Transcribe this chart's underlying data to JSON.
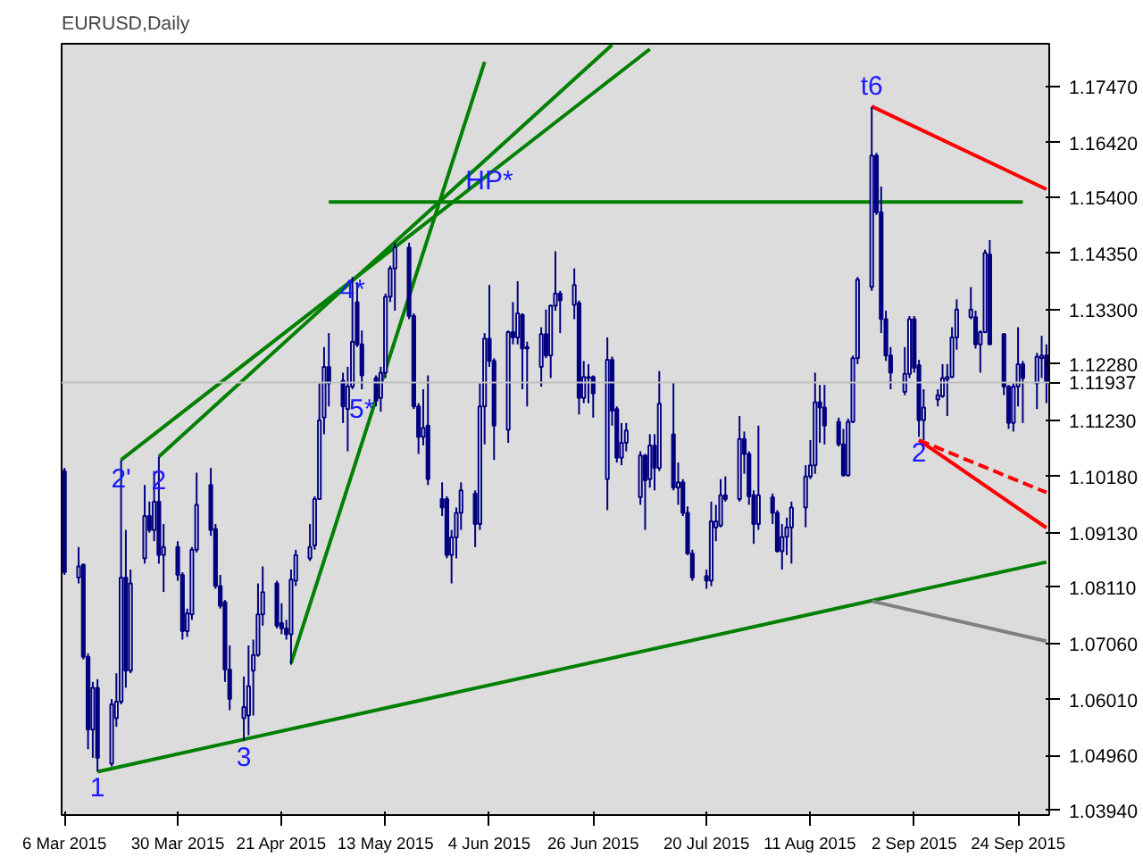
{
  "chart_data": {
    "type": "candlestick",
    "title": "EURUSD,Daily",
    "color": "#000080",
    "x": [
      "2015-03-06",
      "2015-03-09",
      "2015-03-10",
      "2015-03-11",
      "2015-03-12",
      "2015-03-13",
      "2015-03-16",
      "2015-03-17",
      "2015-03-18",
      "2015-03-19",
      "2015-03-20",
      "2015-03-23",
      "2015-03-24",
      "2015-03-25",
      "2015-03-26",
      "2015-03-27",
      "2015-03-30",
      "2015-03-31",
      "2015-04-01",
      "2015-04-02",
      "2015-04-03",
      "2015-04-06",
      "2015-04-07",
      "2015-04-08",
      "2015-04-09",
      "2015-04-10",
      "2015-04-13",
      "2015-04-14",
      "2015-04-15",
      "2015-04-16",
      "2015-04-17",
      "2015-04-20",
      "2015-04-21",
      "2015-04-22",
      "2015-04-23",
      "2015-04-24",
      "2015-04-27",
      "2015-04-28",
      "2015-04-29",
      "2015-04-30",
      "2015-05-01",
      "2015-05-04",
      "2015-05-05",
      "2015-05-06",
      "2015-05-07",
      "2015-05-08",
      "2015-05-11",
      "2015-05-12",
      "2015-05-13",
      "2015-05-14",
      "2015-05-15",
      "2015-05-18",
      "2015-05-19",
      "2015-05-20",
      "2015-05-21",
      "2015-05-22",
      "2015-05-25",
      "2015-05-26",
      "2015-05-27",
      "2015-05-28",
      "2015-05-29",
      "2015-06-01",
      "2015-06-02",
      "2015-06-03",
      "2015-06-04",
      "2015-06-05",
      "2015-06-08",
      "2015-06-09",
      "2015-06-10",
      "2015-06-11",
      "2015-06-12",
      "2015-06-15",
      "2015-06-16",
      "2015-06-17",
      "2015-06-18",
      "2015-06-19",
      "2015-06-22",
      "2015-06-23",
      "2015-06-24",
      "2015-06-25",
      "2015-06-26",
      "2015-06-29",
      "2015-06-30",
      "2015-07-01",
      "2015-07-02",
      "2015-07-03",
      "2015-07-06",
      "2015-07-07",
      "2015-07-08",
      "2015-07-09",
      "2015-07-10",
      "2015-07-13",
      "2015-07-14",
      "2015-07-15",
      "2015-07-16",
      "2015-07-17",
      "2015-07-20",
      "2015-07-21",
      "2015-07-22",
      "2015-07-23",
      "2015-07-24",
      "2015-07-27",
      "2015-07-28",
      "2015-07-29",
      "2015-07-30",
      "2015-07-31",
      "2015-08-03",
      "2015-08-04",
      "2015-08-05",
      "2015-08-06",
      "2015-08-07",
      "2015-08-10",
      "2015-08-11",
      "2015-08-12",
      "2015-08-13",
      "2015-08-14",
      "2015-08-17",
      "2015-08-18",
      "2015-08-19",
      "2015-08-20",
      "2015-08-21",
      "2015-08-24",
      "2015-08-25",
      "2015-08-26",
      "2015-08-27",
      "2015-08-28",
      "2015-08-31",
      "2015-09-01",
      "2015-09-02",
      "2015-09-03",
      "2015-09-04",
      "2015-09-07",
      "2015-09-08",
      "2015-09-09",
      "2015-09-10",
      "2015-09-11",
      "2015-09-14",
      "2015-09-15",
      "2015-09-16",
      "2015-09-17",
      "2015-09-18",
      "2015-09-21",
      "2015-09-22",
      "2015-09-23",
      "2015-09-24",
      "2015-09-25",
      "2015-09-28",
      "2015-09-29",
      "2015-09-30"
    ],
    "ohlc": [
      [
        1.1028,
        1.1034,
        1.0834,
        1.0839
      ],
      [
        1.0829,
        1.0886,
        1.0818,
        1.085
      ],
      [
        1.0853,
        1.0855,
        1.0676,
        1.0681
      ],
      [
        1.0681,
        1.0687,
        1.0508,
        1.0545
      ],
      [
        1.0545,
        1.0634,
        1.0492,
        1.0623
      ],
      [
        1.0623,
        1.0639,
        1.0466,
        1.0492
      ],
      [
        1.0481,
        1.0602,
        1.0476,
        1.0592
      ],
      [
        1.0566,
        1.065,
        1.055,
        1.0597
      ],
      [
        1.0597,
        1.1049,
        1.0592,
        1.0829
      ],
      [
        1.0829,
        1.0918,
        1.0623,
        1.0655
      ],
      [
        1.0655,
        1.0844,
        1.065,
        1.0818
      ],
      [
        1.0865,
        1.1002,
        1.0855,
        1.0944
      ],
      [
        1.0944,
        1.0971,
        1.0913,
        1.0918
      ],
      [
        1.0918,
        1.1028,
        1.0897,
        1.0971
      ],
      [
        1.0971,
        1.1055,
        1.0855,
        1.0871
      ],
      [
        1.0871,
        1.0929,
        1.0802,
        1.0886
      ],
      [
        1.0886,
        1.0897,
        1.0823,
        1.0834
      ],
      [
        1.0834,
        1.0839,
        1.0713,
        1.0729
      ],
      [
        1.0729,
        1.0771,
        1.0718,
        1.0762
      ],
      [
        1.076,
        1.0886,
        1.075,
        1.0881
      ],
      [
        1.0881,
        1.1025,
        1.0876,
        1.0965
      ],
      [
        1.1002,
        1.1034,
        1.0907,
        1.0918
      ],
      [
        1.092,
        1.0929,
        1.0808,
        1.0813
      ],
      [
        1.0813,
        1.0834,
        1.0771,
        1.0776
      ],
      [
        1.0783,
        1.0787,
        1.0634,
        1.0657
      ],
      [
        1.0657,
        1.0702,
        1.0581,
        1.0602
      ],
      [
        1.0566,
        1.0644,
        1.0524,
        1.0587
      ],
      [
        1.0571,
        1.0702,
        1.0534,
        1.0626
      ],
      [
        1.0655,
        1.0713,
        1.0571,
        1.0684
      ],
      [
        1.0684,
        1.0818,
        1.0681,
        1.076
      ],
      [
        1.076,
        1.085,
        1.0739,
        1.0802
      ],
      [
        1.0818,
        1.0823,
        1.0734,
        1.0739
      ],
      [
        1.0744,
        1.0781,
        1.0723,
        1.0734
      ],
      [
        1.0734,
        1.075,
        1.0713,
        1.0723
      ],
      [
        1.0723,
        1.0844,
        1.0666,
        1.0825
      ],
      [
        1.0823,
        1.0881,
        1.0813,
        1.0871
      ],
      [
        1.0865,
        1.0929,
        1.086,
        1.0886
      ],
      [
        1.0889,
        1.0981,
        1.0881,
        1.0976
      ],
      [
        1.0976,
        1.1192,
        1.0976,
        1.1123
      ],
      [
        1.1128,
        1.126,
        1.1097,
        1.1223
      ],
      [
        1.1223,
        1.1286,
        1.1149,
        1.1192
      ],
      [
        1.1197,
        1.1212,
        1.1118,
        1.1149
      ],
      [
        1.1144,
        1.1223,
        1.1065,
        1.1186
      ],
      [
        1.1186,
        1.1391,
        1.1181,
        1.127
      ],
      [
        1.1344,
        1.1381,
        1.126,
        1.1265
      ],
      [
        1.1265,
        1.1291,
        1.1181,
        1.1207
      ],
      [
        1.1202,
        1.1207,
        1.1149,
        1.116
      ],
      [
        1.1165,
        1.1223,
        1.1139,
        1.1212
      ],
      [
        1.1212,
        1.136,
        1.1202,
        1.1354
      ],
      [
        1.1354,
        1.1412,
        1.1344,
        1.1407
      ],
      [
        1.1407,
        1.1455,
        1.1328,
        1.1446
      ],
      [
        1.1446,
        1.1455,
        1.1312,
        1.1318
      ],
      [
        1.1318,
        1.1323,
        1.1144,
        1.1149
      ],
      [
        1.1149,
        1.1155,
        1.106,
        1.1092
      ],
      [
        1.1092,
        1.1181,
        1.1076,
        1.1109
      ],
      [
        1.1113,
        1.1207,
        1.1002,
        1.1013
      ],
      [
        1.0976,
        1.1007,
        1.0944,
        1.096
      ],
      [
        1.0976,
        1.0981,
        1.0865,
        1.0871
      ],
      [
        1.0871,
        1.0918,
        1.0818,
        1.0904
      ],
      [
        1.0904,
        1.096,
        1.0865,
        1.095
      ],
      [
        1.095,
        1.1007,
        1.0918,
        1.0992
      ],
      [
        1.0986,
        1.0992,
        1.0886,
        1.0929
      ],
      [
        1.0929,
        1.1192,
        1.0918,
        1.1149
      ],
      [
        1.1149,
        1.1286,
        1.1078,
        1.1276
      ],
      [
        1.1276,
        1.1376,
        1.1223,
        1.1234
      ],
      [
        1.1234,
        1.1239,
        1.1049,
        1.1113
      ],
      [
        1.1105,
        1.1291,
        1.1081,
        1.1288
      ],
      [
        1.1288,
        1.1344,
        1.1265,
        1.1278
      ],
      [
        1.1278,
        1.1383,
        1.1265,
        1.1323
      ],
      [
        1.132,
        1.1323,
        1.1181,
        1.1257
      ],
      [
        1.126,
        1.127,
        1.1149,
        1.1257
      ],
      [
        1.1223,
        1.1297,
        1.1186,
        1.1284
      ],
      [
        1.1284,
        1.133,
        1.1239,
        1.1244
      ],
      [
        1.1244,
        1.1339,
        1.1202,
        1.1337
      ],
      [
        1.1337,
        1.1439,
        1.1328,
        1.136
      ],
      [
        1.136,
        1.1365,
        1.1286,
        1.1347
      ],
      [
        1.1339,
        1.1407,
        1.1312,
        1.1376
      ],
      [
        1.1342,
        1.1347,
        1.1134,
        1.1165
      ],
      [
        1.1165,
        1.1234,
        1.1155,
        1.1204
      ],
      [
        1.1204,
        1.1228,
        1.1155,
        1.1202
      ],
      [
        1.1204,
        1.1207,
        1.1128,
        1.1173
      ],
      [
        1.1013,
        1.1278,
        1.0955,
        1.1236
      ],
      [
        1.1236,
        1.1242,
        1.1113,
        1.1141
      ],
      [
        1.1144,
        1.1149,
        1.1044,
        1.1053
      ],
      [
        1.1053,
        1.1118,
        1.1039,
        1.1081
      ],
      [
        1.1081,
        1.1118,
        1.1065,
        1.1104
      ],
      [
        1.0979,
        1.1065,
        1.0965,
        1.1057
      ],
      [
        1.1057,
        1.106,
        1.0918,
        1.1011
      ],
      [
        1.1013,
        1.1097,
        1.0997,
        1.1076
      ],
      [
        1.1076,
        1.1097,
        1.0992,
        1.1034
      ],
      [
        1.1034,
        1.1215,
        1.1028,
        1.1154
      ],
      [
        1.1097,
        1.1194,
        1.0992,
        1.0997
      ],
      [
        1.0997,
        1.1044,
        1.0965,
        1.1007
      ],
      [
        1.1007,
        1.1013,
        1.0944,
        1.095
      ],
      [
        1.095,
        1.0962,
        1.0871,
        1.0874
      ],
      [
        1.0874,
        1.0881,
        1.0823,
        1.0829
      ],
      [
        1.0832,
        1.0844,
        1.0808,
        1.0823
      ],
      [
        1.0823,
        1.0971,
        1.0813,
        1.0934
      ],
      [
        1.0923,
        1.0965,
        1.0897,
        1.0934
      ],
      [
        1.0926,
        1.1013,
        1.0923,
        1.0983
      ],
      [
        1.0983,
        1.1018,
        1.0971,
        1.0976
      ],
      [
        1.0976,
        1.1131,
        1.0971,
        1.1088
      ],
      [
        1.1088,
        1.1102,
        1.1023,
        1.106
      ],
      [
        1.106,
        1.1065,
        1.0965,
        1.0981
      ],
      [
        1.0983,
        1.0992,
        1.0892,
        1.0929
      ],
      [
        1.0929,
        1.1113,
        1.0918,
        1.0983
      ],
      [
        1.0979,
        1.0986,
        1.0929,
        1.095
      ],
      [
        1.095,
        1.0955,
        1.0876,
        1.0878
      ],
      [
        1.0878,
        1.0929,
        1.0844,
        1.0905
      ],
      [
        1.0905,
        1.0941,
        1.0871,
        1.0923
      ],
      [
        1.0923,
        1.0971,
        1.0855,
        1.096
      ],
      [
        1.096,
        1.1039,
        1.0923,
        1.1018
      ],
      [
        1.1018,
        1.1086,
        1.1013,
        1.1039
      ],
      [
        1.1039,
        1.1212,
        1.1023,
        1.1157
      ],
      [
        1.1157,
        1.1189,
        1.1081,
        1.1147
      ],
      [
        1.1147,
        1.1189,
        1.1078,
        1.1113
      ],
      [
        1.112,
        1.1128,
        1.1074,
        1.1078
      ],
      [
        1.1078,
        1.1107,
        1.1018,
        1.102
      ],
      [
        1.102,
        1.1126,
        1.1018,
        1.112
      ],
      [
        1.112,
        1.1244,
        1.1118,
        1.1239
      ],
      [
        1.1239,
        1.1391,
        1.1228,
        1.1386
      ],
      [
        1.1372,
        1.1709,
        1.1365,
        1.1618
      ],
      [
        1.1618,
        1.1623,
        1.1507,
        1.1512
      ],
      [
        1.1512,
        1.156,
        1.1286,
        1.1312
      ],
      [
        1.1312,
        1.1328,
        1.1234,
        1.1244
      ],
      [
        1.1244,
        1.126,
        1.1181,
        1.1212
      ],
      [
        1.1176,
        1.126,
        1.117,
        1.121
      ],
      [
        1.121,
        1.1318,
        1.1202,
        1.1312
      ],
      [
        1.1312,
        1.1318,
        1.1212,
        1.1221
      ],
      [
        1.1226,
        1.1236,
        1.1092,
        1.1123
      ],
      [
        1.1123,
        1.1181,
        1.1086,
        1.1147
      ],
      [
        1.1162,
        1.1181,
        1.1149,
        1.117
      ],
      [
        1.1168,
        1.1228,
        1.1165,
        1.1202
      ],
      [
        1.12,
        1.1228,
        1.1131,
        1.1204
      ],
      [
        1.1204,
        1.1297,
        1.1202,
        1.1278
      ],
      [
        1.1278,
        1.1349,
        1.1255,
        1.133
      ],
      [
        1.1316,
        1.1372,
        1.1312,
        1.133
      ],
      [
        1.1316,
        1.1328,
        1.1257,
        1.1265
      ],
      [
        1.1265,
        1.1291,
        1.1212,
        1.1288
      ],
      [
        1.1288,
        1.1442,
        1.1286,
        1.1436
      ],
      [
        1.1433,
        1.146,
        1.1265,
        1.1265
      ],
      [
        1.1284,
        1.1286,
        1.117,
        1.1186
      ],
      [
        1.1186,
        1.1189,
        1.1107,
        1.1118
      ],
      [
        1.1118,
        1.1192,
        1.1102,
        1.1186
      ],
      [
        1.1186,
        1.1297,
        1.1149,
        1.1228
      ],
      [
        1.1228,
        1.1234,
        1.1118,
        1.1202
      ],
      [
        1.1192,
        1.1249,
        1.1144,
        1.1242
      ],
      [
        1.1239,
        1.1281,
        1.1202,
        1.1244
      ],
      [
        1.1244,
        1.1265,
        1.1155,
        1.1194
      ]
    ],
    "series": [
      {
        "type": "line",
        "color": "#008000",
        "x": [
          "2015-03-13",
          "2015-09-30"
        ],
        "values": [
          1.0466,
          1.0858
        ]
      },
      {
        "type": "line",
        "color": "#008000",
        "x": [
          "2015-03-26",
          "2015-06-30"
        ],
        "values": [
          1.1055,
          1.1825
        ]
      },
      {
        "type": "line",
        "color": "#008000",
        "x": [
          "2015-03-18",
          "2015-07-08"
        ],
        "values": [
          1.1049,
          1.1817
        ]
      },
      {
        "type": "line",
        "color": "#008000",
        "x": [
          "2015-04-23",
          "2015-06-03"
        ],
        "values": [
          1.0669,
          1.1793
        ]
      },
      {
        "type": "line",
        "color": "#008000",
        "x": [
          "2015-05-01",
          "2015-09-25"
        ],
        "values": [
          1.1531,
          1.1531
        ]
      },
      {
        "type": "line",
        "color": "#808080",
        "x": [
          "2015-08-24",
          "2015-09-30"
        ],
        "values": [
          1.0785,
          1.071
        ]
      },
      {
        "type": "line",
        "color": "#ff0000",
        "x": [
          "2015-08-24",
          "2015-09-30"
        ],
        "values": [
          1.171,
          1.1555
        ]
      },
      {
        "type": "line",
        "color": "#ff0000",
        "x": [
          "2015-09-03",
          "2015-09-30"
        ],
        "values": [
          1.1086,
          1.0922
        ]
      },
      {
        "type": "line",
        "color": "#ff0000",
        "line_style": "dashed",
        "x": [
          "2015-09-03",
          "2015-09-30"
        ],
        "values": [
          1.1086,
          1.0988
        ]
      }
    ],
    "ref_lines": [
      {
        "axis": "y",
        "value": 1.11937,
        "label": "1.11937",
        "color": "#c0c0c0"
      }
    ],
    "annotations": [
      {
        "text": "1",
        "x": "2015-03-13",
        "y": 1.0466
      },
      {
        "text": "2'",
        "x": "2015-03-18",
        "y": 1.1013
      },
      {
        "text": "2",
        "x": "2015-03-26",
        "y": 1.1013
      },
      {
        "text": "3",
        "x": "2015-04-13",
        "y": 1.0524
      },
      {
        "text": "4*",
        "x": "2015-05-06",
        "y": 1.1366
      },
      {
        "text": "5*",
        "x": "2015-05-08",
        "y": 1.1181
      },
      {
        "text": "HP*",
        "x": "2015-06-04",
        "y": 1.1531
      },
      {
        "text": "t6",
        "x": "2015-08-24",
        "y": 1.1709
      },
      {
        "text": "2",
        "x": "2015-09-03",
        "y": 1.1092
      }
    ],
    "xlim": [
      "2015-03-06",
      "2015-09-30"
    ],
    "xticks": [
      {
        "value": "2015-03-06",
        "label": "6 Mar 2015"
      },
      {
        "value": "2015-03-30",
        "label": "30 Mar 2015"
      },
      {
        "value": "2015-04-21",
        "label": "21 Apr 2015"
      },
      {
        "value": "2015-05-13",
        "label": "13 May 2015"
      },
      {
        "value": "2015-06-04",
        "label": "4 Jun 2015"
      },
      {
        "value": "2015-06-26",
        "label": "26 Jun 2015"
      },
      {
        "value": "2015-07-20",
        "label": "20 Jul 2015"
      },
      {
        "value": "2015-08-11",
        "label": "11 Aug 2015"
      },
      {
        "value": "2015-09-02",
        "label": "2 Sep 2015"
      },
      {
        "value": "2015-09-24",
        "label": "24 Sep 2015"
      }
    ],
    "ylim": [
      1.0385,
      1.1827
    ],
    "yticks": [
      {
        "value": 1.1747,
        "label": "1.17470"
      },
      {
        "value": 1.1642,
        "label": "1.16420"
      },
      {
        "value": 1.154,
        "label": "1.15400"
      },
      {
        "value": 1.1435,
        "label": "1.14350"
      },
      {
        "value": 1.133,
        "label": "1.13300"
      },
      {
        "value": 1.1228,
        "label": "1.12280"
      },
      {
        "value": 1.1123,
        "label": "1.11230"
      },
      {
        "value": 1.1018,
        "label": "1.10180"
      },
      {
        "value": 1.0913,
        "label": "1.09130"
      },
      {
        "value": 1.0811,
        "label": "1.08110"
      },
      {
        "value": 1.0706,
        "label": "1.07060"
      },
      {
        "value": 1.0601,
        "label": "1.06010"
      },
      {
        "value": 1.0496,
        "label": "1.04960"
      },
      {
        "value": 1.0394,
        "label": "1.03940"
      }
    ]
  }
}
